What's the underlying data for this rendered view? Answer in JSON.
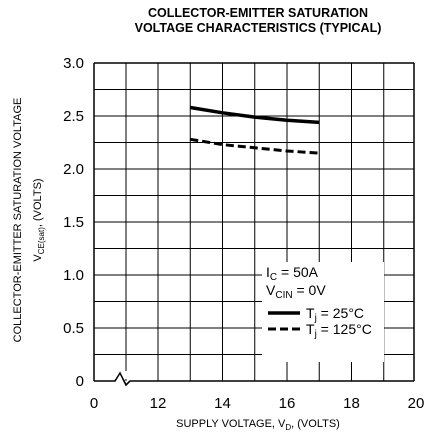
{
  "chart_data": {
    "type": "line",
    "title_line1": "COLLECTOR-EMITTER SATURATION",
    "title_line2": "VOLTAGE CHARACTERISTICS (TYPICAL)",
    "xlabel": {
      "main": "SUPPLY VOLTAGE, V",
      "sub": "D",
      "tail": ", (VOLTS)"
    },
    "ylabel_line1": "COLLECTOR-EMITTER SATURATION VOLTAGE",
    "ylabel_line2": {
      "main": "V",
      "sub": "CE(sat)",
      "tail": ", (VOLTS)"
    },
    "xlim": [
      0,
      20
    ],
    "ylim": [
      0,
      3.0
    ],
    "x_axis_break": true,
    "grid": true,
    "x_ticks": [
      {
        "value": 0,
        "label": "0"
      },
      {
        "value": 12,
        "label": "12"
      },
      {
        "value": 14,
        "label": "14"
      },
      {
        "value": 16,
        "label": "16"
      },
      {
        "value": 18,
        "label": "18"
      },
      {
        "value": 20,
        "label": "20"
      }
    ],
    "y_ticks": [
      {
        "value": 0,
        "label": "0"
      },
      {
        "value": 0.5,
        "label": "0.5"
      },
      {
        "value": 1.0,
        "label": "1.0"
      },
      {
        "value": 1.5,
        "label": "1.5"
      },
      {
        "value": 2.0,
        "label": "2.0"
      },
      {
        "value": 2.5,
        "label": "2.5"
      },
      {
        "value": 3.0,
        "label": "3.0"
      }
    ],
    "conditions": [
      {
        "main": "I",
        "sub": "C",
        "tail": " = 50A"
      },
      {
        "main": "V",
        "sub": "CIN",
        "tail": " = 0V"
      }
    ],
    "legend_position": "bottom-right",
    "series": [
      {
        "legend": {
          "main": "T",
          "sub": "j",
          "tail": " = 25°C"
        },
        "style": "solid",
        "x": [
          13,
          14,
          15,
          16,
          17
        ],
        "y": [
          2.58,
          2.53,
          2.49,
          2.46,
          2.44
        ]
      },
      {
        "legend": {
          "main": "T",
          "sub": "j",
          "tail": " = 125°C"
        },
        "style": "dashed",
        "x": [
          13,
          14,
          15,
          16,
          17
        ],
        "y": [
          2.28,
          2.23,
          2.2,
          2.17,
          2.15
        ]
      }
    ]
  }
}
